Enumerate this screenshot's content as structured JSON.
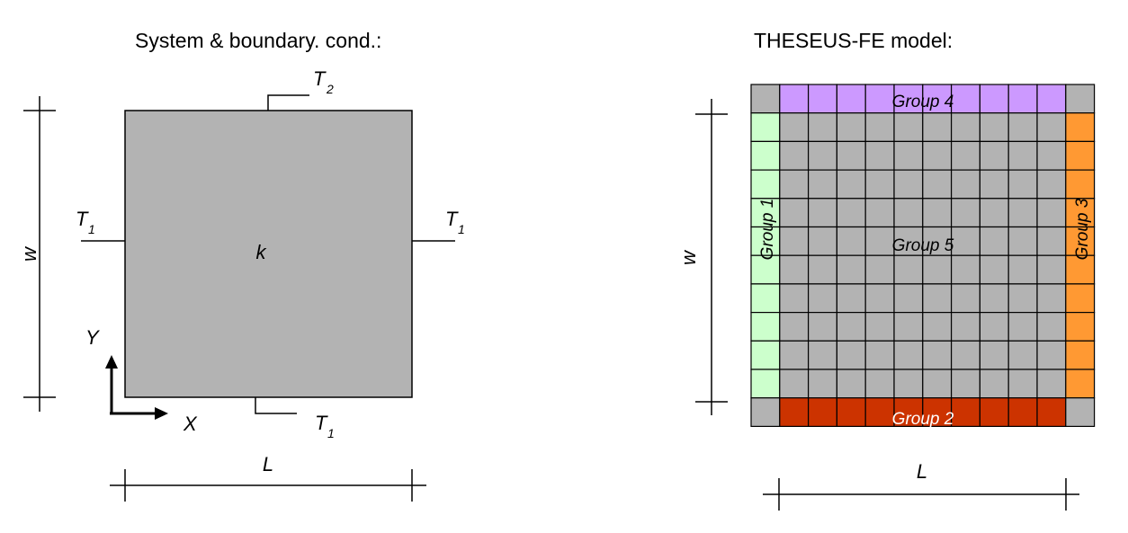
{
  "left_panel": {
    "title": "System & boundary. cond.:",
    "labels": {
      "top_bc": "T",
      "top_bc_sub": "2",
      "left_bc": "T",
      "left_bc_sub": "1",
      "right_bc": "T",
      "right_bc_sub": "1",
      "bottom_bc": "T",
      "bottom_bc_sub": "1",
      "conductivity": "k",
      "height_dim": "w",
      "width_dim": "L",
      "axis_y": "Y",
      "axis_x": "X"
    }
  },
  "right_panel": {
    "title": "THESEUS-FE model:",
    "height_dim": "w",
    "width_dim": "L",
    "grid_rows": 12,
    "grid_cols": 12,
    "groups": {
      "group1": "Group 1",
      "group2": "Group 2",
      "group3": "Group 3",
      "group4": "Group 4",
      "group5": "Group 5"
    }
  },
  "colors": {
    "plate_fill": "#b3b3b3",
    "interior_cell": "#b3b3b3",
    "group1_fill": "#ccffcc",
    "group2_fill": "#cc3300",
    "group3_fill": "#ff9933",
    "group4_fill": "#cc99ff",
    "group5_fill": "#b3b3b3",
    "corner_fill": "#b3b3b3"
  }
}
